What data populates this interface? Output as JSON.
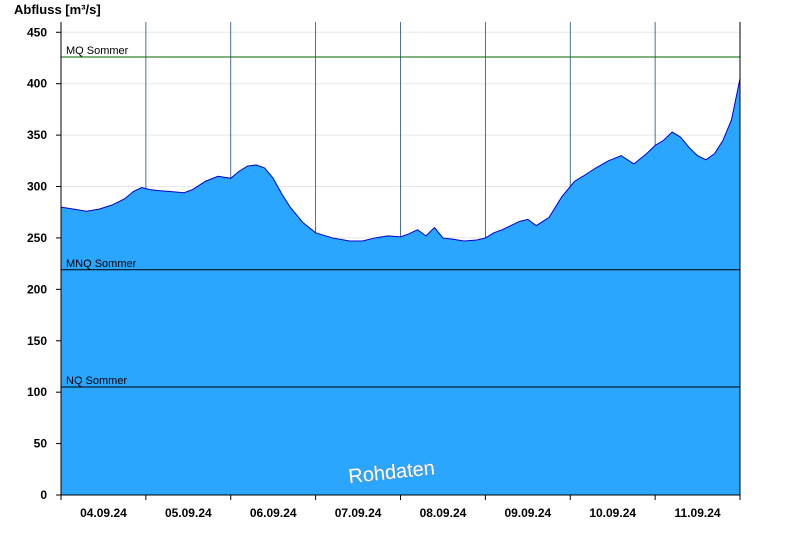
{
  "chart_data": {
    "type": "area",
    "ylabel": "Abfluss [m³/s]",
    "ylim": [
      0,
      460
    ],
    "yticks": [
      0,
      50,
      100,
      150,
      200,
      250,
      300,
      350,
      400,
      450
    ],
    "xlim": [
      0,
      8
    ],
    "xtick_labels": [
      "04.09.24",
      "05.09.24",
      "06.09.24",
      "07.09.24",
      "08.09.24",
      "09.09.24",
      "10.09.24",
      "11.09.24"
    ],
    "grid": true,
    "watermark": "Rohdaten",
    "fill_color": "#2aa6ff",
    "line_color": "#0000cc",
    "reference_lines": [
      {
        "label": "MQ Sommer",
        "value": 426,
        "color": "#006600"
      },
      {
        "label": "MNQ Sommer",
        "value": 219,
        "color": "#000000"
      },
      {
        "label": "NQ Sommer",
        "value": 105,
        "color": "#000000"
      }
    ],
    "series": [
      {
        "x": [
          0,
          0.15,
          0.3,
          0.45,
          0.6,
          0.75,
          0.85,
          0.95,
          1.05,
          1.15,
          1.3,
          1.45,
          1.55,
          1.7,
          1.85,
          2.0,
          2.1,
          2.2,
          2.3,
          2.4,
          2.5,
          2.6,
          2.7,
          2.85,
          3.0,
          3.2,
          3.4,
          3.55,
          3.7,
          3.85,
          4.0,
          4.1,
          4.2,
          4.3,
          4.4,
          4.5,
          4.6,
          4.75,
          4.9,
          5.0,
          5.1,
          5.2,
          5.3,
          5.4,
          5.5,
          5.6,
          5.75,
          5.9,
          6.05,
          6.15,
          6.3,
          6.45,
          6.6,
          6.75,
          6.9,
          7.0,
          7.1,
          7.2,
          7.3,
          7.4,
          7.5,
          7.6,
          7.7,
          7.8,
          7.9,
          8.0
        ],
        "y": [
          280,
          278,
          276,
          278,
          282,
          288,
          295,
          299,
          297,
          296,
          295,
          294,
          297,
          305,
          310,
          308,
          315,
          320,
          321,
          318,
          308,
          293,
          280,
          265,
          255,
          250,
          247,
          247,
          250,
          252,
          251,
          254,
          258,
          252,
          260,
          250,
          249,
          247,
          248,
          250,
          255,
          258,
          262,
          266,
          268,
          262,
          270,
          290,
          305,
          310,
          318,
          325,
          330,
          322,
          332,
          340,
          345,
          353,
          348,
          338,
          330,
          326,
          332,
          345,
          365,
          405
        ]
      }
    ]
  }
}
